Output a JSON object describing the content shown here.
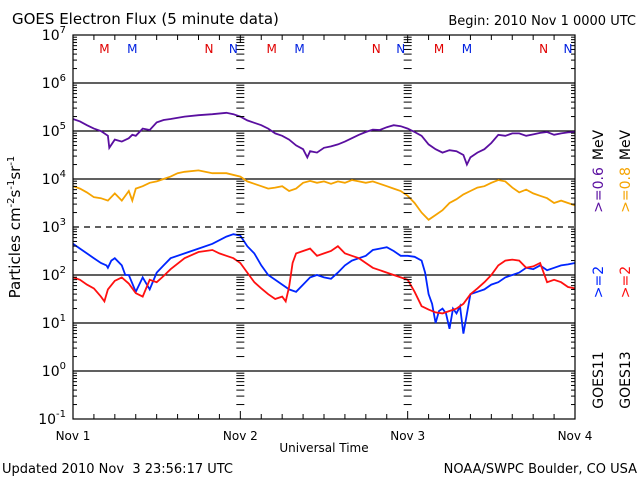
{
  "chart_data": {
    "type": "line",
    "title": "GOES Electron Flux (5 minute data)",
    "begin_label": "Begin: 2010 Nov 1 0000 UTC",
    "xlabel": "Universal Time",
    "ylabel": "Particles cm",
    "ylabel_parts": {
      "base": "Particles cm",
      "e1": "-2",
      "s": "s",
      "e2": "-1",
      "sr": "sr",
      "e3": "-1"
    },
    "x_unit": "hours since 2010 Nov 1 0000 UTC",
    "xlim": [
      0,
      72
    ],
    "ylim_log10": [
      -1,
      7
    ],
    "y_scale": "log",
    "x_ticks": [
      {
        "value": 0,
        "label": "Nov 1"
      },
      {
        "value": 24,
        "label": "Nov 2"
      },
      {
        "value": 48,
        "label": "Nov 3"
      },
      {
        "value": 72,
        "label": "Nov 4"
      }
    ],
    "y_ticks": [
      {
        "exp": 7,
        "base": "10",
        "sup": "7"
      },
      {
        "exp": 6,
        "base": "10",
        "sup": "6"
      },
      {
        "exp": 5,
        "base": "10",
        "sup": "5"
      },
      {
        "exp": 4,
        "base": "10",
        "sup": "4"
      },
      {
        "exp": 3,
        "base": "10",
        "sup": "3"
      },
      {
        "exp": 2,
        "base": "10",
        "sup": "2"
      },
      {
        "exp": 1,
        "base": "10",
        "sup": "1"
      },
      {
        "exp": 0,
        "base": "10",
        "sup": "0"
      },
      {
        "exp": -1,
        "base": "10",
        "sup": "-1"
      }
    ],
    "grid_lines": [
      {
        "exp": 6,
        "style": "solid"
      },
      {
        "exp": 5,
        "style": "solid"
      },
      {
        "exp": 4,
        "style": "solid"
      },
      {
        "exp": 3,
        "style": "dashed"
      },
      {
        "exp": 2,
        "style": "solid"
      },
      {
        "exp": 1,
        "style": "solid"
      },
      {
        "exp": 0,
        "style": "solid"
      }
    ],
    "markers": [
      {
        "hour": 4.5,
        "label": "M",
        "color": "#e00000"
      },
      {
        "hour": 8.5,
        "label": "M",
        "color": "#0020e0"
      },
      {
        "hour": 19.5,
        "label": "N",
        "color": "#e00000"
      },
      {
        "hour": 23.0,
        "label": "N",
        "color": "#0020e0"
      },
      {
        "hour": 28.5,
        "label": "M",
        "color": "#e00000"
      },
      {
        "hour": 32.5,
        "label": "M",
        "color": "#0020e0"
      },
      {
        "hour": 43.5,
        "label": "N",
        "color": "#e00000"
      },
      {
        "hour": 47.0,
        "label": "N",
        "color": "#0020e0"
      },
      {
        "hour": 52.5,
        "label": "M",
        "color": "#e00000"
      },
      {
        "hour": 56.5,
        "label": "M",
        "color": "#0020e0"
      },
      {
        "hour": 67.5,
        "label": "N",
        "color": "#e00000"
      },
      {
        "hour": 71.0,
        "label": "N",
        "color": "#0020e0"
      }
    ],
    "legend": {
      "placement": "right",
      "entries": [
        {
          "text": ">=0.6 MeV",
          "color": "#6a0dad"
        },
        {
          "text": ">=0.8 MeV",
          "color": "#f0a000"
        },
        {
          "text": ">=2",
          "color": "#0020e0"
        },
        {
          "text": ">=2",
          "color": "#e00000"
        },
        {
          "text": "GOES11",
          "color": "#000000"
        },
        {
          "text": "GOES13",
          "color": "#000000"
        }
      ],
      "mev_label": "MeV",
      "col1": {
        "a": ">=0.6",
        "b": "MeV",
        "c": ">=2",
        "d": "GOES11"
      },
      "col2": {
        "a": ">=0.8",
        "b": "MeV",
        "c": ">=2",
        "d": "GOES13"
      }
    },
    "series": [
      {
        "name": "GOES11 >=0.6 MeV",
        "color": "#5a0fa0",
        "x": [
          0,
          1,
          2,
          3,
          4,
          5,
          5.2,
          6,
          7,
          8,
          8.5,
          9,
          10,
          11,
          12,
          13,
          14,
          16,
          18,
          20,
          22,
          23,
          24,
          25,
          26,
          27,
          28,
          29,
          30,
          31,
          32,
          33,
          33.6,
          34,
          35,
          36,
          37,
          38,
          39,
          40,
          41,
          42,
          43,
          44,
          45,
          46,
          47,
          48,
          49,
          50,
          51,
          52,
          53,
          54,
          55,
          56,
          56.5,
          57,
          58,
          59,
          60,
          61,
          62,
          63,
          64,
          65,
          66,
          67,
          68,
          69,
          70,
          71,
          72
        ],
        "log10": [
          5.25,
          5.2,
          5.12,
          5.05,
          5.0,
          4.9,
          4.65,
          4.82,
          4.78,
          4.85,
          4.92,
          4.9,
          5.05,
          5.02,
          5.18,
          5.23,
          5.25,
          5.3,
          5.33,
          5.35,
          5.38,
          5.35,
          5.3,
          5.22,
          5.17,
          5.12,
          5.05,
          4.95,
          4.9,
          4.82,
          4.7,
          4.62,
          4.45,
          4.58,
          4.55,
          4.65,
          4.68,
          4.72,
          4.78,
          4.85,
          4.92,
          4.98,
          5.03,
          5.02,
          5.08,
          5.12,
          5.1,
          5.05,
          4.98,
          4.9,
          4.72,
          4.62,
          4.55,
          4.6,
          4.58,
          4.5,
          4.3,
          4.45,
          4.55,
          4.62,
          4.75,
          4.92,
          4.9,
          4.95,
          4.95,
          4.9,
          4.93,
          4.96,
          4.98,
          4.92,
          4.95,
          4.97,
          4.98
        ]
      },
      {
        "name": "GOES13 >=0.8 MeV",
        "color": "#f5a300",
        "x": [
          0,
          1,
          2,
          3,
          4,
          5,
          6,
          7,
          8,
          8.5,
          9,
          10,
          11,
          12,
          13,
          14,
          15,
          16,
          18,
          20,
          22,
          24,
          25,
          26,
          27,
          28,
          29,
          30,
          31,
          32,
          33,
          34,
          35,
          36,
          37,
          38,
          39,
          40,
          41,
          42,
          43,
          44,
          45,
          46,
          47,
          48,
          49,
          50,
          51,
          52,
          53,
          54,
          55,
          56,
          57,
          58,
          59,
          60,
          61,
          62,
          63,
          64,
          65,
          66,
          67,
          68,
          69,
          70,
          71,
          72
        ],
        "log10": [
          3.85,
          3.8,
          3.72,
          3.62,
          3.6,
          3.55,
          3.7,
          3.55,
          3.75,
          3.55,
          3.8,
          3.85,
          3.92,
          3.95,
          4.0,
          4.05,
          4.12,
          4.15,
          4.18,
          4.12,
          4.12,
          4.05,
          3.95,
          3.9,
          3.85,
          3.8,
          3.82,
          3.85,
          3.75,
          3.8,
          3.92,
          3.96,
          3.92,
          3.95,
          3.9,
          3.95,
          3.92,
          3.98,
          3.95,
          3.92,
          3.95,
          3.9,
          3.85,
          3.8,
          3.75,
          3.65,
          3.5,
          3.3,
          3.15,
          3.25,
          3.35,
          3.5,
          3.58,
          3.68,
          3.75,
          3.82,
          3.85,
          3.92,
          3.98,
          3.95,
          3.82,
          3.72,
          3.78,
          3.7,
          3.65,
          3.6,
          3.5,
          3.55,
          3.5,
          3.45
        ]
      },
      {
        "name": "GOES11 >=2 MeV",
        "color": "#0025ff",
        "x": [
          0,
          1,
          2,
          3,
          4,
          4.8,
          5,
          5.5,
          6,
          7,
          7.5,
          8,
          9,
          10,
          11,
          12,
          13,
          14,
          16,
          18,
          20,
          22,
          23,
          24,
          25,
          26,
          27,
          28,
          29,
          30,
          31,
          32,
          33,
          34,
          35,
          36,
          37,
          38,
          39,
          40,
          41,
          42,
          43,
          44,
          45,
          46,
          47,
          48,
          49,
          50,
          50.5,
          51,
          51.5,
          52,
          52.5,
          53,
          53.5,
          54,
          54.5,
          55,
          55.5,
          56,
          57,
          58,
          59,
          60,
          61,
          62,
          63,
          64,
          65,
          66,
          67,
          68,
          69,
          70,
          71,
          72
        ],
        "log10": [
          2.65,
          2.55,
          2.45,
          2.35,
          2.25,
          2.2,
          2.15,
          2.3,
          2.35,
          2.2,
          2.0,
          2.0,
          1.65,
          1.95,
          1.7,
          2.05,
          2.2,
          2.35,
          2.45,
          2.55,
          2.65,
          2.8,
          2.85,
          2.82,
          2.6,
          2.45,
          2.2,
          2.0,
          1.9,
          1.8,
          1.7,
          1.65,
          1.8,
          1.95,
          2.0,
          1.95,
          1.92,
          2.05,
          2.2,
          2.3,
          2.35,
          2.4,
          2.52,
          2.55,
          2.58,
          2.5,
          2.4,
          2.4,
          2.38,
          2.3,
          2.05,
          1.6,
          1.4,
          1.0,
          1.25,
          1.3,
          1.2,
          0.88,
          1.3,
          1.2,
          1.35,
          0.78,
          1.6,
          1.65,
          1.7,
          1.8,
          1.85,
          1.95,
          2.0,
          2.05,
          2.15,
          2.12,
          2.2,
          2.1,
          2.15,
          2.2,
          2.22,
          2.25
        ]
      },
      {
        "name": "GOES13 >=2 MeV",
        "color": "#ff1010",
        "x": [
          0,
          1,
          2,
          3,
          4,
          4.5,
          5,
          6,
          7,
          8,
          9,
          10,
          11,
          12,
          13,
          14,
          16,
          18,
          20,
          21,
          22,
          23,
          24,
          25,
          26,
          27,
          28,
          29,
          30,
          30.5,
          31,
          31.5,
          32,
          33,
          34,
          35,
          36,
          37,
          38,
          39,
          40,
          41,
          42,
          43,
          44,
          45,
          46,
          47,
          48,
          49,
          50,
          51,
          52,
          53,
          54,
          55,
          56,
          57,
          58,
          59,
          60,
          61,
          62,
          63,
          64,
          65,
          66,
          67,
          68,
          69,
          70,
          71,
          72
        ],
        "log10": [
          1.95,
          1.9,
          1.8,
          1.72,
          1.55,
          1.45,
          1.7,
          1.88,
          1.95,
          1.82,
          1.62,
          1.55,
          1.9,
          1.85,
          1.98,
          2.12,
          2.35,
          2.48,
          2.52,
          2.45,
          2.4,
          2.35,
          2.25,
          2.05,
          1.85,
          1.72,
          1.6,
          1.5,
          1.55,
          1.45,
          1.75,
          2.25,
          2.45,
          2.5,
          2.55,
          2.4,
          2.45,
          2.5,
          2.6,
          2.45,
          2.4,
          2.35,
          2.25,
          2.15,
          2.1,
          2.05,
          2.0,
          1.95,
          1.9,
          1.65,
          1.35,
          1.28,
          1.22,
          1.2,
          1.25,
          1.3,
          1.4,
          1.6,
          1.72,
          1.85,
          2.0,
          2.2,
          2.3,
          2.32,
          2.3,
          2.15,
          2.18,
          2.25,
          1.85,
          1.9,
          1.85,
          1.75,
          1.72
        ]
      }
    ]
  },
  "footer": {
    "updated": "Updated 2010 Nov  3 23:56:17 UTC",
    "credit": "NOAA/SWPC Boulder, CO USA"
  }
}
